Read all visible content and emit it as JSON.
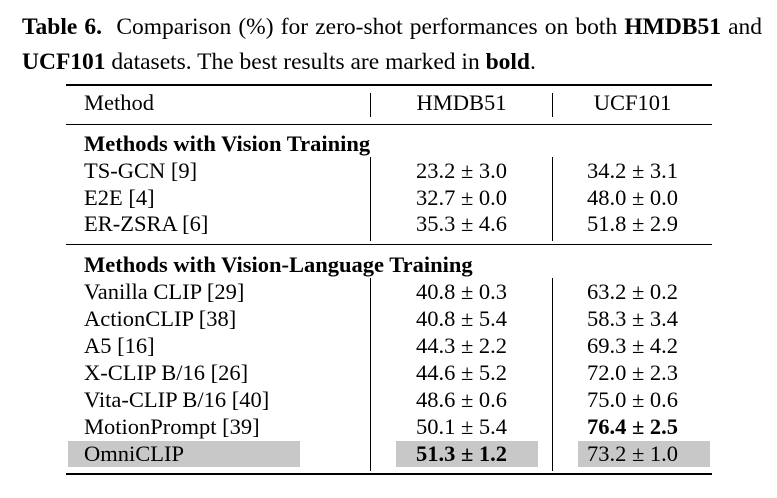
{
  "caption": {
    "label": "Table 6.",
    "text_pre": "Comparison (%) for zero-shot performances on both",
    "bold1": "HMDB51",
    "and": "and",
    "bold2": "UCF101",
    "text_post": "datasets. The best results are marked in",
    "bold3": "bold",
    "period": "."
  },
  "table": {
    "headers": [
      "Method",
      "HMDB51",
      "UCF101"
    ],
    "sections": [
      {
        "title": "Methods with Vision Training",
        "rows": [
          {
            "method": "TS-GCN [9]",
            "hmdb": "23.2 ± 3.0",
            "ucf": "34.2 ± 3.1"
          },
          {
            "method": "E2E [4]",
            "hmdb": "32.7 ± 0.0",
            "ucf": "48.0 ± 0.0"
          },
          {
            "method": "ER-ZSRA [6]",
            "hmdb": "35.3 ± 4.6",
            "ucf": "51.8 ± 2.9"
          }
        ]
      },
      {
        "title": "Methods with Vision-Language Training",
        "rows": [
          {
            "method": "Vanilla CLIP [29]",
            "hmdb": "40.8 ± 0.3",
            "ucf": "63.2 ± 0.2"
          },
          {
            "method": "ActionCLIP [38]",
            "hmdb": "40.8 ± 5.4",
            "ucf": "58.3 ± 3.4"
          },
          {
            "method": "A5 [16]",
            "hmdb": "44.3 ± 2.2",
            "ucf": "69.3 ± 4.2"
          },
          {
            "method": "X-CLIP B/16 [26]",
            "hmdb": "44.6 ± 5.2",
            "ucf": "72.0 ± 2.3"
          },
          {
            "method": "Vita-CLIP B/16 [40]",
            "hmdb": "48.6 ± 0.6",
            "ucf": "75.0 ± 0.6"
          },
          {
            "method": "MotionPrompt [39]",
            "hmdb": "50.1 ± 5.4",
            "ucf": "76.4 ± 2.5"
          },
          {
            "method": "OmniCLIP",
            "hmdb": "51.3 ± 1.2",
            "ucf": "73.2 ± 1.0"
          }
        ]
      }
    ],
    "highlight_color": "#c8c8c8"
  }
}
